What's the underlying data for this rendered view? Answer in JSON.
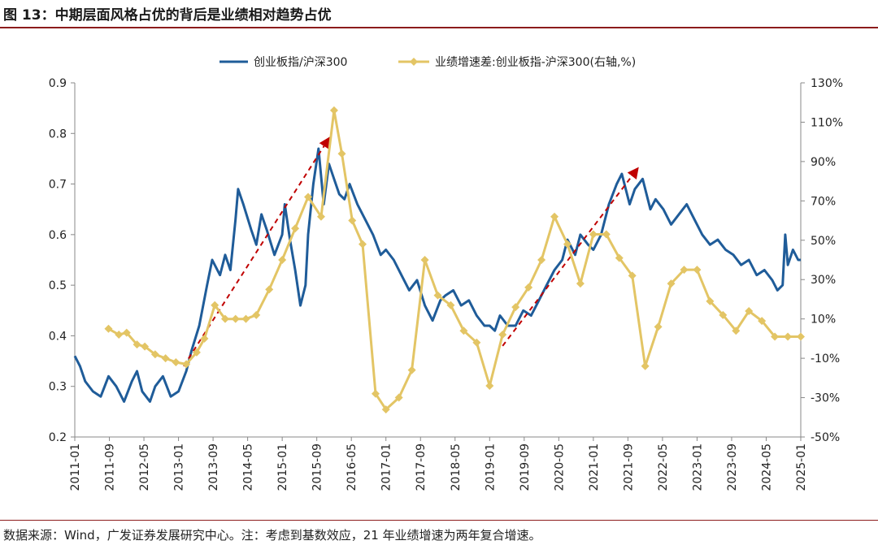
{
  "page": {
    "title": "图 13：中期层面风格占优的背后是业绩相对趋势占优",
    "source": "数据来源：Wind，广发证券发展研究中心。注：考虑到基数效应，21 年业绩增速为两年复合增速。"
  },
  "colors": {
    "blue": "#1f5c99",
    "yellow": "#e3c565",
    "arrow": "#c00000",
    "title_rule": "#8c1c1c"
  },
  "chart_data": {
    "type": "line",
    "title": "中期层面风格占优的背后是业绩相对趋势占优",
    "x_ticks": [
      "2011-01",
      "2011-09",
      "2012-05",
      "2013-01",
      "2013-09",
      "2014-05",
      "2015-01",
      "2015-09",
      "2016-05",
      "2017-01",
      "2017-09",
      "2018-05",
      "2019-01",
      "2019-09",
      "2020-05",
      "2021-01",
      "2021-09",
      "2022-05",
      "2023-01",
      "2023-09",
      "2024-05",
      "2025-01"
    ],
    "x_range": [
      2011.0,
      2025.0
    ],
    "y_left": {
      "range": [
        0.2,
        0.9
      ],
      "ticks": [
        "0.2",
        "0.3",
        "0.4",
        "0.5",
        "0.6",
        "0.7",
        "0.8",
        "0.9"
      ]
    },
    "y_right": {
      "range": [
        -50,
        130
      ],
      "ticks": [
        "-50%",
        "-30%",
        "-10%",
        "10%",
        "30%",
        "50%",
        "70%",
        "90%",
        "110%",
        "130%"
      ]
    },
    "series": [
      {
        "name": "创业板指/沪深300",
        "axis": "left",
        "style": "line",
        "x": [
          2011.0,
          2011.1,
          2011.2,
          2011.35,
          2011.5,
          2011.65,
          2011.8,
          2011.95,
          2012.1,
          2012.2,
          2012.3,
          2012.45,
          2012.55,
          2012.7,
          2012.85,
          2013.0,
          2013.15,
          2013.25,
          2013.4,
          2013.55,
          2013.65,
          2013.8,
          2013.9,
          2014.0,
          2014.1,
          2014.15,
          2014.25,
          2014.4,
          2014.5,
          2014.6,
          2014.7,
          2014.85,
          2015.0,
          2015.05,
          2015.15,
          2015.25,
          2015.35,
          2015.45,
          2015.5,
          2015.6,
          2015.7,
          2015.8,
          2015.9,
          2016.0,
          2016.1,
          2016.2,
          2016.3,
          2016.45,
          2016.6,
          2016.75,
          2016.9,
          2017.0,
          2017.15,
          2017.3,
          2017.45,
          2017.6,
          2017.75,
          2017.9,
          2018.05,
          2018.15,
          2018.3,
          2018.45,
          2018.6,
          2018.75,
          2018.9,
          2019.0,
          2019.1,
          2019.2,
          2019.35,
          2019.5,
          2019.65,
          2019.8,
          2019.95,
          2020.1,
          2020.25,
          2020.4,
          2020.5,
          2020.65,
          2020.75,
          2020.9,
          2021.0,
          2021.15,
          2021.3,
          2021.45,
          2021.55,
          2021.7,
          2021.8,
          2021.95,
          2022.1,
          2022.2,
          2022.35,
          2022.5,
          2022.65,
          2022.8,
          2022.95,
          2023.1,
          2023.25,
          2023.4,
          2023.55,
          2023.7,
          2023.85,
          2024.0,
          2024.15,
          2024.3,
          2024.45,
          2024.55,
          2024.65,
          2024.7,
          2024.75,
          2024.85,
          2024.95,
          2025.0
        ],
        "values": [
          0.36,
          0.34,
          0.31,
          0.29,
          0.28,
          0.32,
          0.3,
          0.27,
          0.31,
          0.33,
          0.29,
          0.27,
          0.3,
          0.32,
          0.28,
          0.29,
          0.33,
          0.37,
          0.42,
          0.5,
          0.55,
          0.52,
          0.56,
          0.53,
          0.63,
          0.69,
          0.66,
          0.61,
          0.58,
          0.64,
          0.61,
          0.56,
          0.6,
          0.66,
          0.59,
          0.53,
          0.46,
          0.5,
          0.6,
          0.7,
          0.77,
          0.66,
          0.74,
          0.71,
          0.68,
          0.67,
          0.7,
          0.66,
          0.63,
          0.6,
          0.56,
          0.57,
          0.55,
          0.52,
          0.49,
          0.51,
          0.46,
          0.43,
          0.47,
          0.48,
          0.49,
          0.46,
          0.47,
          0.44,
          0.42,
          0.42,
          0.41,
          0.44,
          0.42,
          0.42,
          0.45,
          0.44,
          0.47,
          0.5,
          0.53,
          0.55,
          0.59,
          0.56,
          0.6,
          0.58,
          0.57,
          0.6,
          0.66,
          0.7,
          0.72,
          0.66,
          0.69,
          0.71,
          0.65,
          0.67,
          0.65,
          0.62,
          0.64,
          0.66,
          0.63,
          0.6,
          0.58,
          0.59,
          0.57,
          0.56,
          0.54,
          0.55,
          0.52,
          0.53,
          0.51,
          0.49,
          0.5,
          0.6,
          0.54,
          0.57,
          0.55,
          0.55
        ]
      },
      {
        "name": "业绩增速差:创业板指-沪深300(右轴,%)",
        "axis": "right",
        "style": "line-diamond",
        "x": [
          2011.65,
          2011.85,
          2012.0,
          2012.2,
          2012.35,
          2012.55,
          2012.75,
          2012.95,
          2013.15,
          2013.35,
          2013.5,
          2013.7,
          2013.9,
          2014.1,
          2014.3,
          2014.5,
          2014.75,
          2015.0,
          2015.25,
          2015.5,
          2015.75,
          2016.0,
          2016.15,
          2016.35,
          2016.55,
          2016.8,
          2017.0,
          2017.25,
          2017.5,
          2017.75,
          2018.0,
          2018.25,
          2018.5,
          2018.75,
          2019.0,
          2019.25,
          2019.5,
          2019.75,
          2020.0,
          2020.25,
          2020.5,
          2020.75,
          2021.0,
          2021.25,
          2021.5,
          2021.75,
          2022.0,
          2022.25,
          2022.5,
          2022.75,
          2023.0,
          2023.25,
          2023.5,
          2023.75,
          2024.0,
          2024.25,
          2024.5,
          2024.75,
          2025.0
        ],
        "values": [
          5,
          2,
          3,
          -3,
          -4,
          -8,
          -10,
          -12,
          -13,
          -7,
          0,
          17,
          10,
          10,
          10,
          12,
          25,
          40,
          56,
          72,
          62,
          116,
          94,
          60,
          48,
          -28,
          -36,
          -30,
          -16,
          40,
          22,
          17,
          4,
          -2,
          -24,
          2,
          16,
          26,
          40,
          62,
          48,
          28,
          53,
          53,
          41,
          32,
          -14,
          6,
          28,
          35,
          35,
          19,
          12,
          4,
          14,
          9,
          1,
          1,
          1
        ]
      }
    ],
    "arrows": [
      {
        "from": [
          2013.1,
          0.34
        ],
        "to": [
          2015.9,
          0.79
        ]
      },
      {
        "from": [
          2019.25,
          0.38
        ],
        "to": [
          2021.85,
          0.73
        ]
      }
    ],
    "legend": [
      "创业板指/沪深300",
      "业绩增速差:创业板指-沪深300(右轴,%)"
    ],
    "legend_position": "top-center",
    "grid": false
  }
}
